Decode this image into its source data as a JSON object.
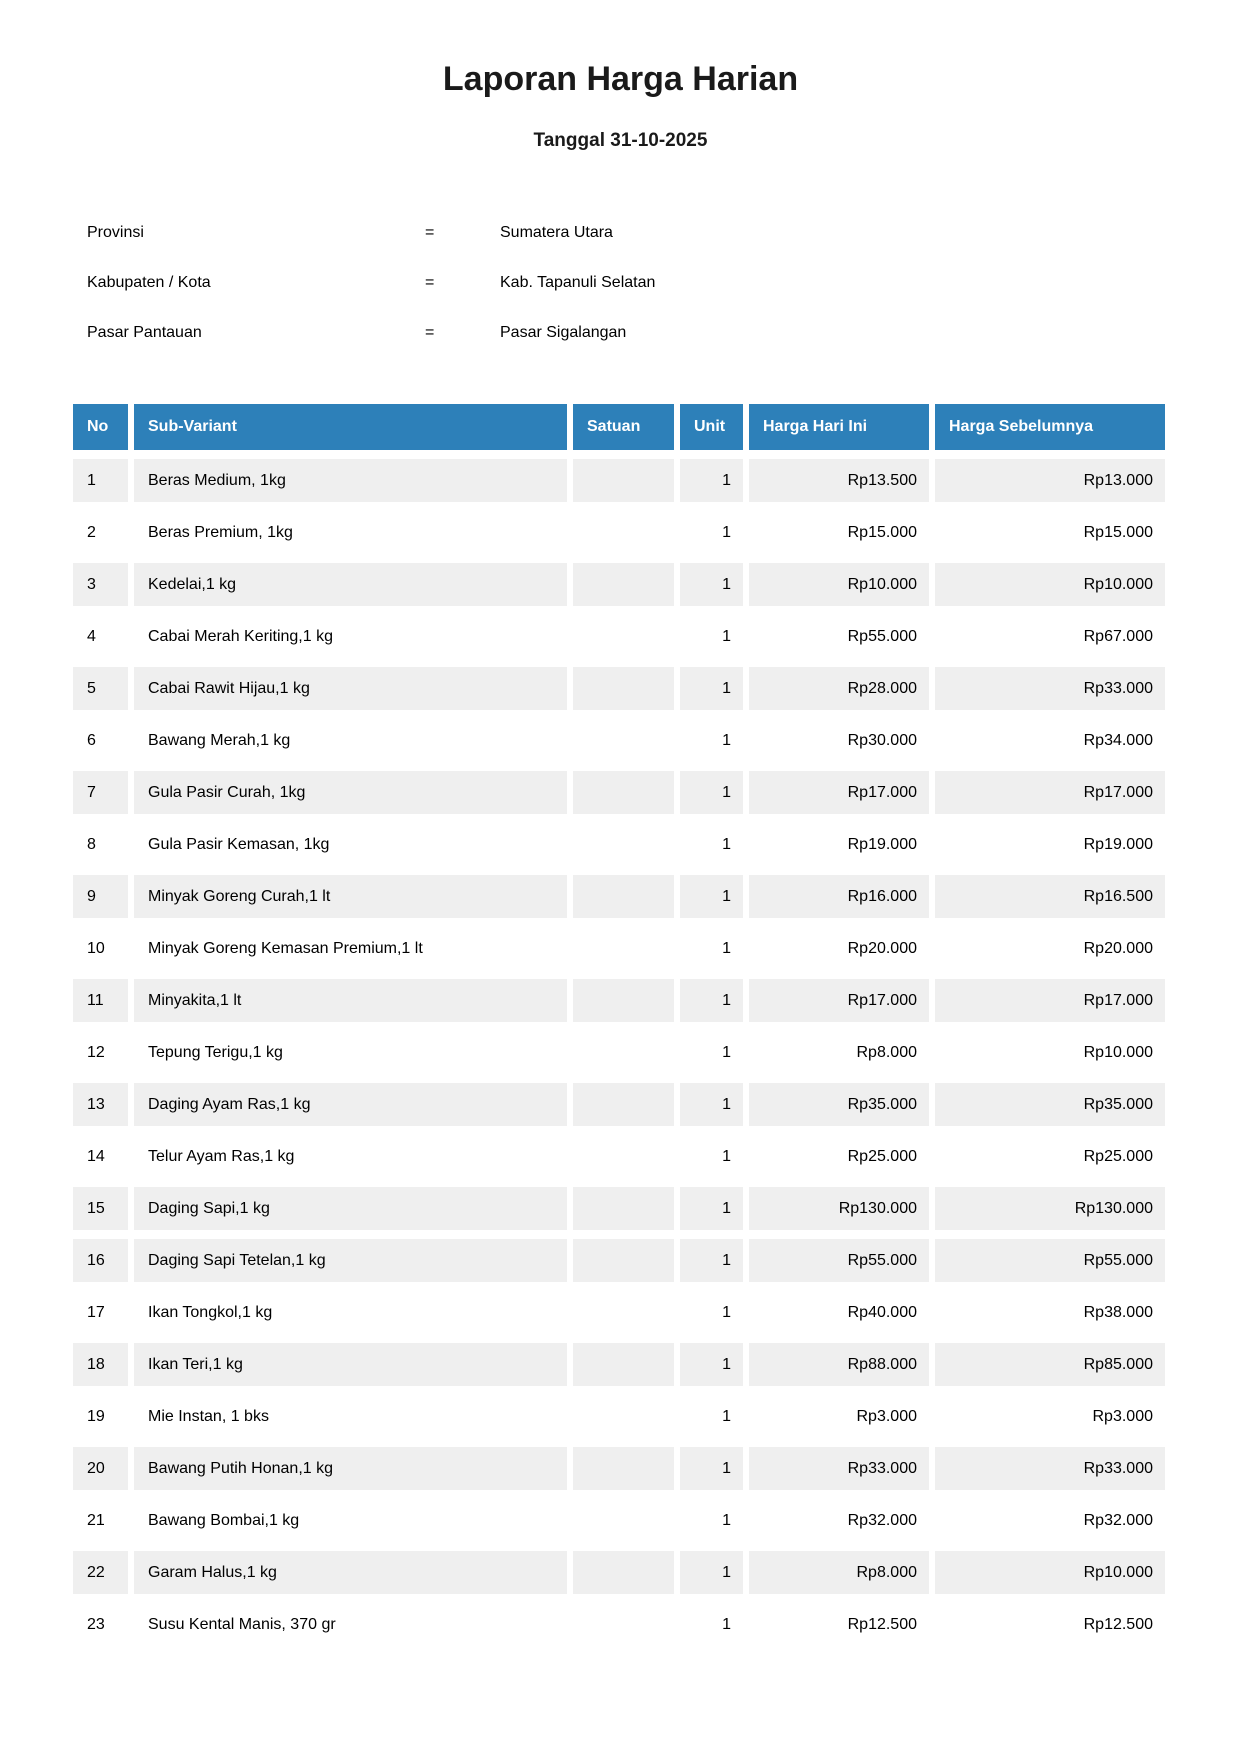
{
  "report": {
    "title": "Laporan Harga Harian",
    "date_line": "Tanggal 31-10-2025"
  },
  "info": {
    "separator": "=",
    "fields": [
      {
        "label": "Provinsi",
        "value": "Sumatera Utara"
      },
      {
        "label": "Kabupaten / Kota",
        "value": "Kab. Tapanuli Selatan"
      },
      {
        "label": "Pasar Pantauan",
        "value": "Pasar Sigalangan"
      }
    ]
  },
  "table": {
    "headers": [
      "No",
      "Sub-Variant",
      "Satuan",
      "Unit",
      "Harga Hari Ini",
      "Harga Sebelumnya"
    ],
    "rows": [
      {
        "no": "1",
        "sub_variant": "Beras Medium, 1kg",
        "satuan": "",
        "unit": "1",
        "harga_hari_ini": "Rp13.500",
        "harga_sebelumnya": "Rp13.000",
        "shaded": true
      },
      {
        "no": "2",
        "sub_variant": "Beras Premium, 1kg",
        "satuan": "",
        "unit": "1",
        "harga_hari_ini": "Rp15.000",
        "harga_sebelumnya": "Rp15.000",
        "shaded": false
      },
      {
        "no": "3",
        "sub_variant": "Kedelai,1 kg",
        "satuan": "",
        "unit": "1",
        "harga_hari_ini": "Rp10.000",
        "harga_sebelumnya": "Rp10.000",
        "shaded": true
      },
      {
        "no": "4",
        "sub_variant": "Cabai Merah Keriting,1 kg",
        "satuan": "",
        "unit": "1",
        "harga_hari_ini": "Rp55.000",
        "harga_sebelumnya": "Rp67.000",
        "shaded": false
      },
      {
        "no": "5",
        "sub_variant": "Cabai Rawit Hijau,1 kg",
        "satuan": "",
        "unit": "1",
        "harga_hari_ini": "Rp28.000",
        "harga_sebelumnya": "Rp33.000",
        "shaded": true
      },
      {
        "no": "6",
        "sub_variant": "Bawang Merah,1 kg",
        "satuan": "",
        "unit": "1",
        "harga_hari_ini": "Rp30.000",
        "harga_sebelumnya": "Rp34.000",
        "shaded": false
      },
      {
        "no": "7",
        "sub_variant": "Gula Pasir Curah, 1kg",
        "satuan": "",
        "unit": "1",
        "harga_hari_ini": "Rp17.000",
        "harga_sebelumnya": "Rp17.000",
        "shaded": true
      },
      {
        "no": "8",
        "sub_variant": "Gula Pasir Kemasan, 1kg",
        "satuan": "",
        "unit": "1",
        "harga_hari_ini": "Rp19.000",
        "harga_sebelumnya": "Rp19.000",
        "shaded": false
      },
      {
        "no": "9",
        "sub_variant": "Minyak Goreng Curah,1 lt",
        "satuan": "",
        "unit": "1",
        "harga_hari_ini": "Rp16.000",
        "harga_sebelumnya": "Rp16.500",
        "shaded": true
      },
      {
        "no": "10",
        "sub_variant": "Minyak Goreng Kemasan Premium,1 lt",
        "satuan": "",
        "unit": "1",
        "harga_hari_ini": "Rp20.000",
        "harga_sebelumnya": "Rp20.000",
        "shaded": false
      },
      {
        "no": "11",
        "sub_variant": "Minyakita,1 lt",
        "satuan": "",
        "unit": "1",
        "harga_hari_ini": "Rp17.000",
        "harga_sebelumnya": "Rp17.000",
        "shaded": true
      },
      {
        "no": "12",
        "sub_variant": "Tepung Terigu,1 kg",
        "satuan": "",
        "unit": "1",
        "harga_hari_ini": "Rp8.000",
        "harga_sebelumnya": "Rp10.000",
        "shaded": false
      },
      {
        "no": "13",
        "sub_variant": "Daging Ayam Ras,1 kg",
        "satuan": "",
        "unit": "1",
        "harga_hari_ini": "Rp35.000",
        "harga_sebelumnya": "Rp35.000",
        "shaded": true
      },
      {
        "no": "14",
        "sub_variant": "Telur Ayam Ras,1 kg",
        "satuan": "",
        "unit": "1",
        "harga_hari_ini": "Rp25.000",
        "harga_sebelumnya": "Rp25.000",
        "shaded": false
      },
      {
        "no": "15",
        "sub_variant": "Daging Sapi,1 kg",
        "satuan": "",
        "unit": "1",
        "harga_hari_ini": "Rp130.000",
        "harga_sebelumnya": "Rp130.000",
        "shaded": true
      },
      {
        "no": "16",
        "sub_variant": "Daging Sapi Tetelan,1 kg",
        "satuan": "",
        "unit": "1",
        "harga_hari_ini": "Rp55.000",
        "harga_sebelumnya": "Rp55.000",
        "shaded": true
      },
      {
        "no": "17",
        "sub_variant": "Ikan Tongkol,1 kg",
        "satuan": "",
        "unit": "1",
        "harga_hari_ini": "Rp40.000",
        "harga_sebelumnya": "Rp38.000",
        "shaded": false
      },
      {
        "no": "18",
        "sub_variant": "Ikan Teri,1 kg",
        "satuan": "",
        "unit": "1",
        "harga_hari_ini": "Rp88.000",
        "harga_sebelumnya": "Rp85.000",
        "shaded": true
      },
      {
        "no": "19",
        "sub_variant": "Mie Instan, 1 bks",
        "satuan": "",
        "unit": "1",
        "harga_hari_ini": "Rp3.000",
        "harga_sebelumnya": "Rp3.000",
        "shaded": false
      },
      {
        "no": "20",
        "sub_variant": "Bawang Putih Honan,1 kg",
        "satuan": "",
        "unit": "1",
        "harga_hari_ini": "Rp33.000",
        "harga_sebelumnya": "Rp33.000",
        "shaded": true
      },
      {
        "no": "21",
        "sub_variant": "Bawang Bombai,1 kg",
        "satuan": "",
        "unit": "1",
        "harga_hari_ini": "Rp32.000",
        "harga_sebelumnya": "Rp32.000",
        "shaded": false
      },
      {
        "no": "22",
        "sub_variant": "Garam Halus,1 kg",
        "satuan": "",
        "unit": "1",
        "harga_hari_ini": "Rp8.000",
        "harga_sebelumnya": "Rp10.000",
        "shaded": true
      },
      {
        "no": "23",
        "sub_variant": "Susu Kental Manis, 370 gr",
        "satuan": "",
        "unit": "1",
        "harga_hari_ini": "Rp12.500",
        "harga_sebelumnya": "Rp12.500",
        "shaded": false
      }
    ]
  },
  "colors": {
    "header_bg": "#2d80b9",
    "header_text": "#ffffff",
    "row_shaded_bg": "#efefef"
  }
}
